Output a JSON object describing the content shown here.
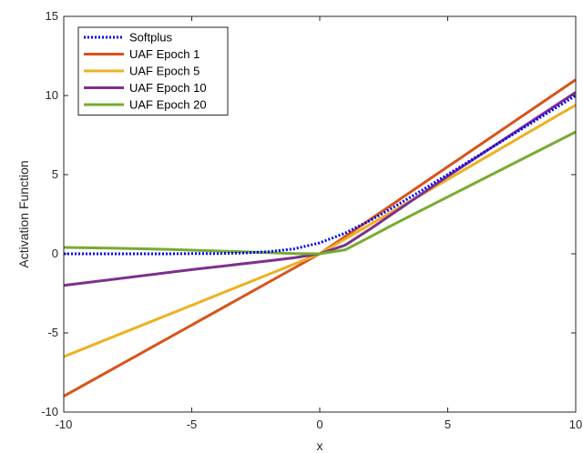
{
  "chart_data": {
    "type": "line",
    "title": "",
    "xlabel": "x",
    "ylabel": "Activation Function",
    "xlim": [
      -10,
      10
    ],
    "ylim": [
      -10,
      15
    ],
    "xticks": [
      -10,
      -5,
      0,
      5,
      10
    ],
    "xtick_labels": [
      "-10",
      "-5",
      "0",
      "5",
      "10"
    ],
    "yticks": [
      -10,
      -5,
      0,
      5,
      10,
      15
    ],
    "ytick_labels": [
      "-10",
      "-5",
      "0",
      "5",
      "10",
      "15"
    ],
    "grid": false,
    "legend_position": "top-left",
    "series": [
      {
        "name": "Softplus",
        "color": "#0000ff",
        "style": "dotted",
        "x": [
          -10,
          -8,
          -6,
          -5,
          -4,
          -3,
          -2,
          -1,
          0,
          1,
          2,
          3,
          4,
          5,
          6,
          8,
          10
        ],
        "y": [
          0.0,
          0.0,
          0.0,
          0.01,
          0.02,
          0.05,
          0.13,
          0.31,
          0.69,
          1.31,
          2.13,
          3.05,
          4.02,
          5.01,
          6.0,
          8.0,
          10.0
        ]
      },
      {
        "name": "UAF Epoch 1",
        "color": "#d95319",
        "style": "solid",
        "x": [
          -10,
          -5,
          0,
          5,
          10
        ],
        "y": [
          -9.0,
          -4.5,
          0.0,
          5.5,
          11.0
        ]
      },
      {
        "name": "UAF Epoch 5",
        "color": "#edb120",
        "style": "solid",
        "x": [
          -10,
          -5,
          0,
          5,
          10
        ],
        "y": [
          -6.5,
          -3.25,
          0.0,
          4.7,
          9.4
        ]
      },
      {
        "name": "UAF Epoch 10",
        "color": "#7e2f8e",
        "style": "solid",
        "x": [
          -10,
          -5,
          -2,
          -1,
          0,
          1,
          2,
          3,
          5,
          10
        ],
        "y": [
          -2.0,
          -1.0,
          -0.45,
          -0.25,
          0.0,
          0.55,
          1.6,
          2.7,
          4.9,
          10.2
        ]
      },
      {
        "name": "UAF Epoch 20",
        "color": "#77ac30",
        "style": "solid",
        "x": [
          -10,
          -8,
          -6,
          -4,
          -2,
          -1,
          0,
          1,
          2,
          3,
          5,
          10
        ],
        "y": [
          0.4,
          0.35,
          0.28,
          0.18,
          0.07,
          0.02,
          0.0,
          0.25,
          1.1,
          1.95,
          3.6,
          7.7
        ]
      }
    ]
  }
}
